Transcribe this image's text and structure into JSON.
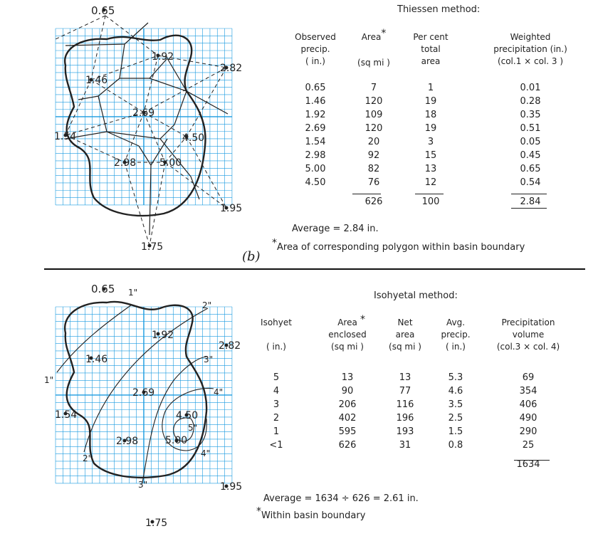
{
  "panel_b": {
    "label": "(b)",
    "title": "Thiessen method:",
    "headers": {
      "col1": "Observed\nprecip.\n( in.)",
      "col2": "Area",
      "col2_unit": "(sq mi )",
      "col3": "Per cent\ntotal\narea",
      "col4": "Weighted\nprecipitation (in.)\n(col.1 × col. 3 )"
    },
    "rows": [
      [
        "0.65",
        "7",
        "1",
        "0.01"
      ],
      [
        "1.46",
        "120",
        "19",
        "0.28"
      ],
      [
        "1.92",
        "109",
        "18",
        "0.35"
      ],
      [
        "2.69",
        "120",
        "19",
        "0.51"
      ],
      [
        "1.54",
        "20",
        "3",
        "0.05"
      ],
      [
        "2.98",
        "92",
        "15",
        "0.45"
      ],
      [
        "5.00",
        "82",
        "13",
        "0.65"
      ],
      [
        "4.50",
        "76",
        "12",
        "0.54"
      ]
    ],
    "totals": [
      "626",
      "100",
      "2.84"
    ],
    "average": "Average = 2.84 in.",
    "footnote": "Area of corresponding polygon within basin boundary",
    "stations": [
      {
        "label": "0.65"
      },
      {
        "label": "1.92"
      },
      {
        "label": "2.82"
      },
      {
        "label": "1.46"
      },
      {
        "label": "2.69"
      },
      {
        "label": "1.54"
      },
      {
        "label": "4.50"
      },
      {
        "label": "2.98"
      },
      {
        "label": "5.00"
      },
      {
        "label": "1.95"
      },
      {
        "label": "1.75"
      }
    ]
  },
  "panel_c": {
    "title": "Isohyetal method:",
    "headers": {
      "col1": "Isohyet\n\n( in.)",
      "col2": "Area\nenclosed\n(sq mi )",
      "col3": "Net\narea\n(sq mi )",
      "col4": "Avg.\nprecip.\n( in.)",
      "col5": "Precipitation\nvolume\n(col.3 × col. 4)"
    },
    "rows": [
      [
        "5",
        "13",
        "13",
        "5.3",
        "69"
      ],
      [
        "4",
        "90",
        "77",
        "4.6",
        "354"
      ],
      [
        "3",
        "206",
        "116",
        "3.5",
        "406"
      ],
      [
        "2",
        "402",
        "196",
        "2.5",
        "490"
      ],
      [
        "1",
        "595",
        "193",
        "1.5",
        "290"
      ],
      [
        "<1",
        "626",
        "31",
        "0.8",
        "25"
      ]
    ],
    "total": "1634",
    "average": "Average = 1634 ÷ 626 = 2.61 in.",
    "footnote": "Within basin boundary",
    "stations": [
      {
        "label": "0.65"
      },
      {
        "label": "1.92"
      },
      {
        "label": "2.82"
      },
      {
        "label": "1.46"
      },
      {
        "label": "2.69"
      },
      {
        "label": "1.54"
      },
      {
        "label": "4.50"
      },
      {
        "label": "2.98"
      },
      {
        "label": "5.00"
      },
      {
        "label": "1.95"
      },
      {
        "label": "1.75"
      }
    ],
    "isohyet_labels": [
      "1\"",
      "1\"",
      "2\"",
      "2\"",
      "3\"",
      "3\"",
      "4\"",
      "4\"",
      "5\""
    ]
  },
  "colors": {
    "grid": "#1a9be0",
    "ink": "#222222"
  }
}
